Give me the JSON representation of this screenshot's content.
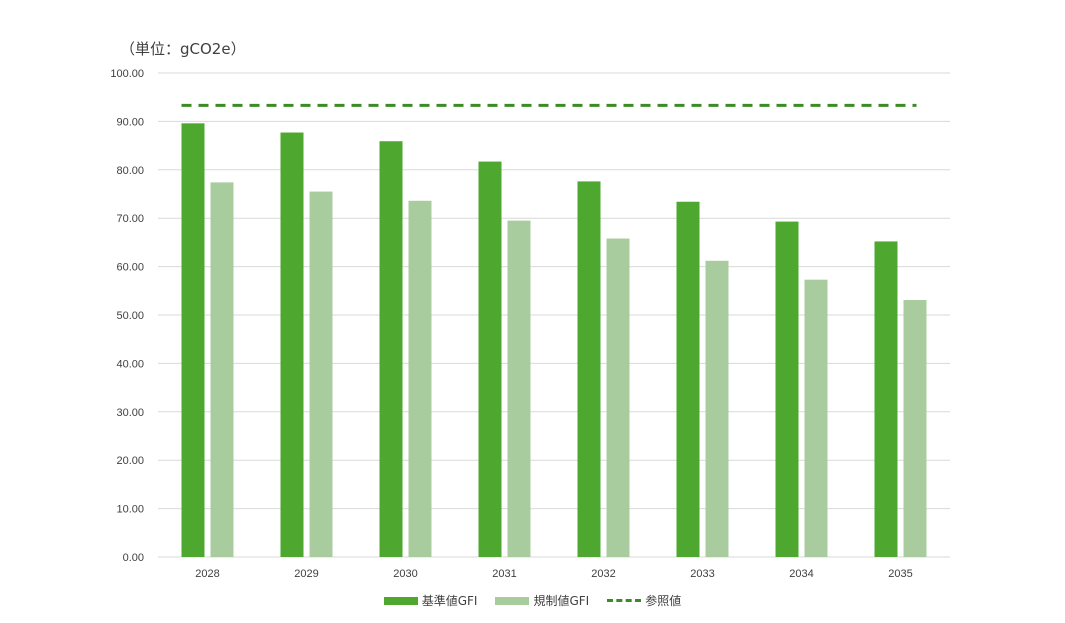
{
  "unit_label": "（単位：gCO2e）",
  "legend": {
    "series1": "基準値GFI",
    "series2": "規制値GFI",
    "series3": "参照値"
  },
  "colors": {
    "series1": "#4ea72e",
    "series2": "#a9cc9e",
    "reference": "#3c8c25",
    "grid": "#d9d9d9",
    "axis_text": "#404040"
  },
  "chart_data": {
    "type": "bar",
    "categories": [
      "2028",
      "2029",
      "2030",
      "2031",
      "2032",
      "2033",
      "2034",
      "2035"
    ],
    "series": [
      {
        "name": "基準値GFI",
        "values": [
          89.6,
          87.7,
          85.9,
          81.7,
          77.6,
          73.4,
          69.3,
          65.2
        ]
      },
      {
        "name": "規制値GFI",
        "values": [
          77.4,
          75.5,
          73.6,
          69.5,
          65.8,
          61.2,
          57.3,
          53.1
        ]
      }
    ],
    "reference": {
      "name": "参照値",
      "value": 93.3
    },
    "ylim": [
      0,
      100
    ],
    "yticks": [
      "0.00",
      "10.00",
      "20.00",
      "30.00",
      "40.00",
      "50.00",
      "60.00",
      "70.00",
      "80.00",
      "90.00",
      "100.00"
    ],
    "grid": true,
    "legend_position": "bottom"
  }
}
